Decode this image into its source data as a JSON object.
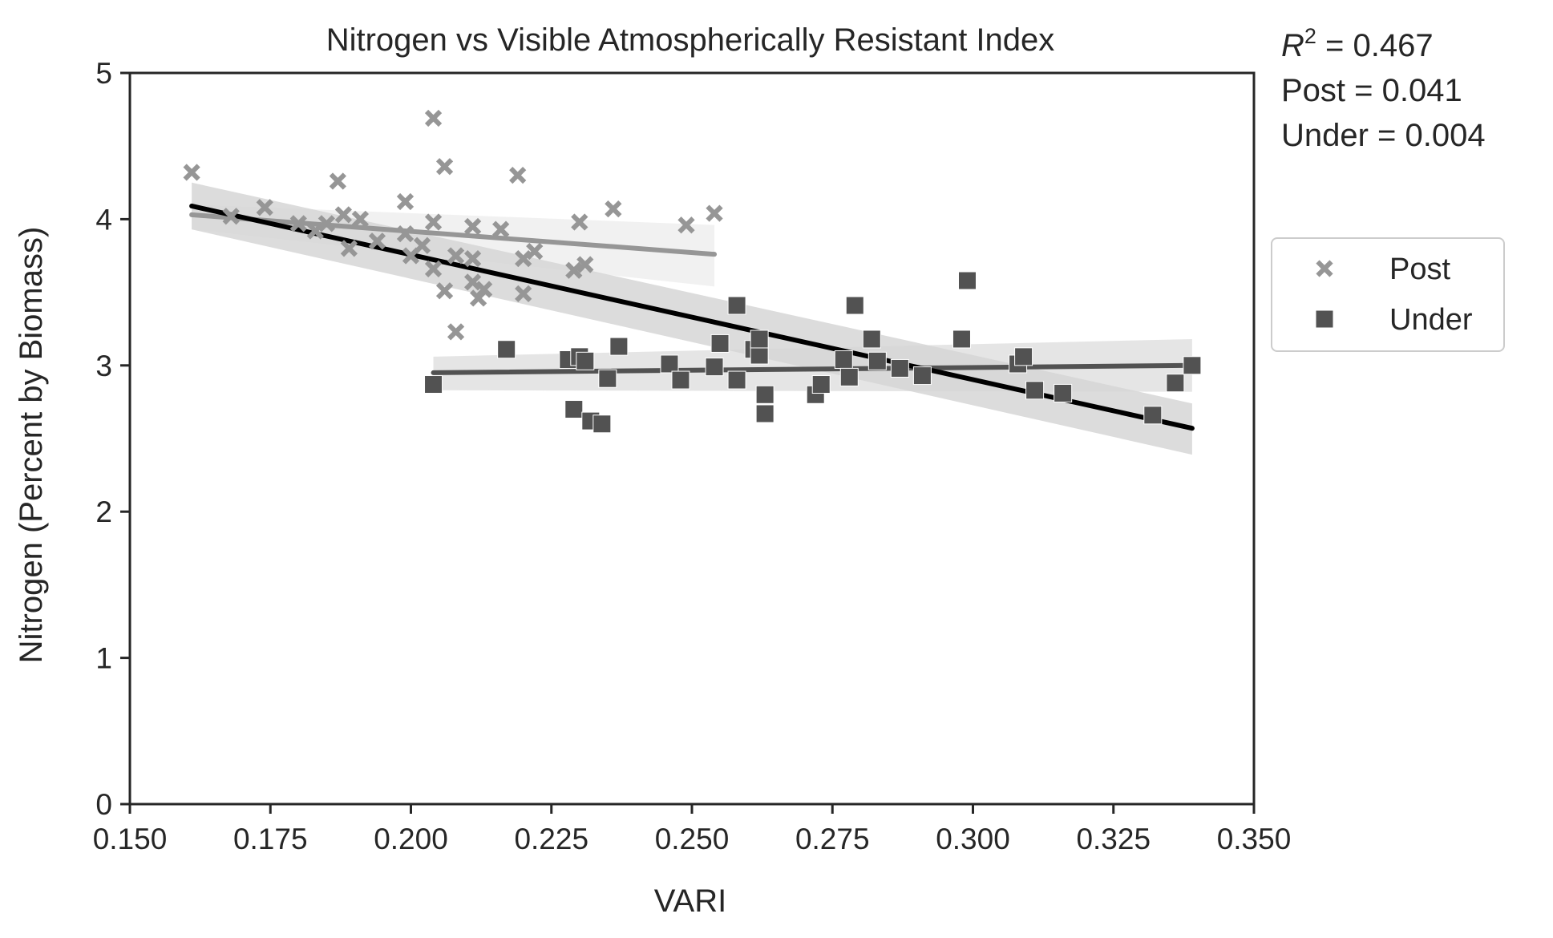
{
  "chart_data": {
    "type": "scatter",
    "title": "Nitrogen vs Visible Atmospherically Resistant Index",
    "xlabel": "VARI",
    "ylabel": "Nitrogen (Percent by Biomass)",
    "xlim": [
      0.15,
      0.35
    ],
    "ylim": [
      0,
      5
    ],
    "xticks": [
      0.15,
      0.175,
      0.2,
      0.225,
      0.25,
      0.275,
      0.3,
      0.325,
      0.35
    ],
    "xtick_labels": [
      "0.150",
      "0.175",
      "0.200",
      "0.225",
      "0.250",
      "0.275",
      "0.300",
      "0.325",
      "0.350"
    ],
    "yticks": [
      0,
      1,
      2,
      3,
      4,
      5
    ],
    "ytick_labels": [
      "0",
      "1",
      "2",
      "3",
      "4",
      "5"
    ],
    "grid": false,
    "legend_position": "right-outside",
    "stats": {
      "r2_symbol": "R",
      "r2_sup": "2",
      "r2_value": " = 0.467",
      "post_text": "Post = 0.041",
      "under_text": "Under = 0.004"
    },
    "series": [
      {
        "name": "Post",
        "marker": "x",
        "color": "#969696",
        "points": [
          [
            0.161,
            4.32
          ],
          [
            0.168,
            4.02
          ],
          [
            0.174,
            4.08
          ],
          [
            0.18,
            3.97
          ],
          [
            0.183,
            3.92
          ],
          [
            0.185,
            3.97
          ],
          [
            0.187,
            4.26
          ],
          [
            0.188,
            4.03
          ],
          [
            0.189,
            3.8
          ],
          [
            0.191,
            4.0
          ],
          [
            0.194,
            3.85
          ],
          [
            0.199,
            4.12
          ],
          [
            0.199,
            3.9
          ],
          [
            0.2,
            3.75
          ],
          [
            0.202,
            3.82
          ],
          [
            0.204,
            4.69
          ],
          [
            0.204,
            3.66
          ],
          [
            0.204,
            3.98
          ],
          [
            0.206,
            3.51
          ],
          [
            0.206,
            4.36
          ],
          [
            0.208,
            3.23
          ],
          [
            0.208,
            3.75
          ],
          [
            0.211,
            3.95
          ],
          [
            0.211,
            3.73
          ],
          [
            0.211,
            3.57
          ],
          [
            0.212,
            3.46
          ],
          [
            0.213,
            3.52
          ],
          [
            0.216,
            3.93
          ],
          [
            0.219,
            4.3
          ],
          [
            0.22,
            3.73
          ],
          [
            0.22,
            3.49
          ],
          [
            0.222,
            3.78
          ],
          [
            0.229,
            3.65
          ],
          [
            0.23,
            3.98
          ],
          [
            0.231,
            3.69
          ],
          [
            0.236,
            4.07
          ],
          [
            0.249,
            3.96
          ],
          [
            0.254,
            4.04
          ]
        ],
        "fit": {
          "x": [
            0.161,
            0.254
          ],
          "y": [
            4.03,
            3.76
          ],
          "ci": [
            [
              4.1,
              3.96
            ],
            [
              3.93,
              3.54
            ]
          ]
        }
      },
      {
        "name": "Under",
        "marker": "square",
        "color": "#525252",
        "points": [
          [
            0.204,
            2.87
          ],
          [
            0.217,
            3.11
          ],
          [
            0.228,
            3.04
          ],
          [
            0.229,
            2.7
          ],
          [
            0.23,
            3.06
          ],
          [
            0.231,
            3.03
          ],
          [
            0.232,
            2.62
          ],
          [
            0.234,
            2.6
          ],
          [
            0.235,
            2.91
          ],
          [
            0.237,
            3.13
          ],
          [
            0.246,
            3.01
          ],
          [
            0.248,
            2.9
          ],
          [
            0.254,
            2.99
          ],
          [
            0.255,
            3.15
          ],
          [
            0.258,
            3.41
          ],
          [
            0.258,
            2.9
          ],
          [
            0.261,
            3.11
          ],
          [
            0.262,
            3.07
          ],
          [
            0.262,
            3.18
          ],
          [
            0.263,
            2.8
          ],
          [
            0.263,
            2.67
          ],
          [
            0.272,
            2.8
          ],
          [
            0.273,
            2.87
          ],
          [
            0.277,
            3.04
          ],
          [
            0.278,
            2.92
          ],
          [
            0.279,
            3.41
          ],
          [
            0.282,
            3.18
          ],
          [
            0.283,
            3.03
          ],
          [
            0.287,
            2.98
          ],
          [
            0.291,
            2.93
          ],
          [
            0.298,
            3.18
          ],
          [
            0.299,
            3.58
          ],
          [
            0.308,
            3.01
          ],
          [
            0.309,
            3.06
          ],
          [
            0.311,
            2.83
          ],
          [
            0.316,
            2.81
          ],
          [
            0.332,
            2.66
          ],
          [
            0.336,
            2.88
          ],
          [
            0.339,
            3.0
          ]
        ],
        "fit": {
          "x": [
            0.204,
            0.339
          ],
          "y": [
            2.95,
            3.0
          ],
          "ci": [
            [
              3.06,
              3.18
            ],
            [
              2.83,
              2.82
            ]
          ]
        }
      }
    ],
    "overall_fit": {
      "color": "#000000",
      "x": [
        0.161,
        0.339
      ],
      "y": [
        4.09,
        2.57
      ],
      "ci": [
        [
          4.25,
          2.74
        ],
        [
          3.93,
          2.39
        ]
      ]
    },
    "colors": {
      "axis": "#262626",
      "ci_post": "#eeeeee",
      "ci_under": "#e0e0e0",
      "ci_overall": "#d6d6d6",
      "legend_border": "#cccccc"
    }
  }
}
